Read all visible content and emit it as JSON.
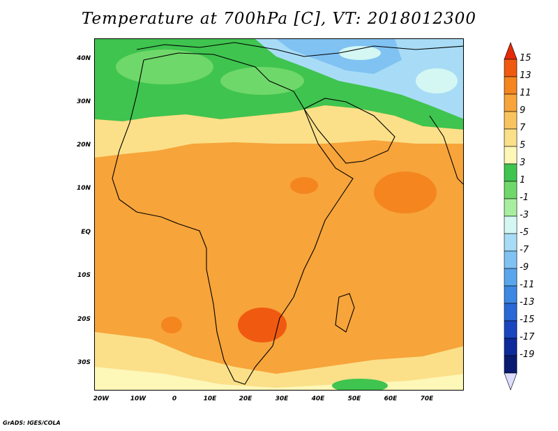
{
  "title": "Temperature at 700hPa [C], VT: 2018012300",
  "footer": "GrADS: IGES/COLA",
  "lat_labels": [
    "40N",
    "30N",
    "20N",
    "10N",
    "EQ",
    "10S",
    "20S",
    "30S"
  ],
  "lon_labels": [
    "20W",
    "10W",
    "0",
    "10E",
    "20E",
    "30E",
    "40E",
    "50E",
    "60E",
    "70E"
  ],
  "colorbar": {
    "labels": [
      "15",
      "13",
      "11",
      "9",
      "7",
      "5",
      "3",
      "1",
      "-1",
      "-3",
      "-5",
      "-7",
      "-9",
      "-11",
      "-13",
      "-15",
      "-17",
      "-19"
    ],
    "colors": [
      "#e52a0a",
      "#f05a10",
      "#f4851f",
      "#f7a43a",
      "#f9c45f",
      "#fbe089",
      "#fdf7b8",
      "#3fc44f",
      "#6fd86a",
      "#a8eea0",
      "#d4f7f3",
      "#a8dcf6",
      "#80c2f2",
      "#5aa6ec",
      "#3d88e2",
      "#2a68d6",
      "#1a46c0",
      "#0c2a9a",
      "#0a1a70",
      "#dcdcff"
    ]
  },
  "map_colors": {
    "warm": "#f7a43a",
    "warm_dark": "#f4851f",
    "hot": "#f05a10",
    "pale": "#fbe089",
    "light": "#fdf7b8",
    "green": "#3fc44f",
    "green_light": "#6fd86a",
    "blue": "#80c2f2",
    "blue_light": "#a8dcf6",
    "cyan": "#d4f7f3"
  }
}
